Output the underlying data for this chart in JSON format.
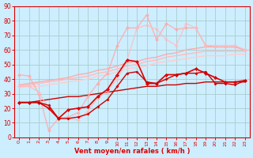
{
  "x": [
    0,
    1,
    2,
    3,
    4,
    5,
    6,
    7,
    8,
    9,
    10,
    11,
    12,
    13,
    14,
    15,
    16,
    17,
    18,
    19,
    20,
    21,
    22,
    23
  ],
  "lines": [
    {
      "y": [
        36,
        37,
        38,
        39,
        40,
        41,
        43,
        44,
        46,
        47,
        49,
        51,
        52,
        54,
        55,
        57,
        58,
        60,
        61,
        62,
        62,
        62,
        62,
        60
      ],
      "color": "#ffaaaa",
      "lw": 1.0,
      "marker": null,
      "markersize": 0,
      "alpha": 1.0
    },
    {
      "y": [
        35,
        36,
        37,
        38,
        39,
        40,
        41,
        42,
        44,
        45,
        47,
        49,
        50,
        52,
        53,
        55,
        56,
        57,
        58,
        59,
        59,
        59,
        59,
        59
      ],
      "color": "#ffbbbb",
      "lw": 1.0,
      "marker": null,
      "markersize": 0,
      "alpha": 1.0
    },
    {
      "y": [
        34,
        35,
        35,
        36,
        37,
        38,
        39,
        40,
        42,
        43,
        45,
        47,
        48,
        49,
        51,
        52,
        53,
        54,
        55,
        56,
        56,
        56,
        57,
        57
      ],
      "color": "#ffcccc",
      "lw": 1.0,
      "marker": null,
      "markersize": 0,
      "alpha": 1.0
    },
    {
      "y": [
        24,
        24,
        25,
        26,
        27,
        28,
        28,
        29,
        30,
        31,
        32,
        33,
        34,
        35,
        35,
        36,
        36,
        37,
        37,
        38,
        38,
        38,
        38,
        38
      ],
      "color": "#cc0000",
      "lw": 1.0,
      "marker": null,
      "markersize": 0,
      "alpha": 1.0
    },
    {
      "y": [
        43,
        42,
        30,
        5,
        13,
        14,
        17,
        28,
        37,
        44,
        63,
        75,
        75,
        84,
        67,
        78,
        74,
        75,
        75,
        63,
        62,
        62,
        62,
        60
      ],
      "color": "#ffaaaa",
      "lw": 1.0,
      "marker": "D",
      "markersize": 2.5,
      "alpha": 0.85
    },
    {
      "y": [
        35,
        35,
        31,
        20,
        14,
        13,
        12,
        18,
        27,
        32,
        40,
        53,
        75,
        77,
        74,
        67,
        63,
        78,
        75,
        63,
        63,
        63,
        63,
        60
      ],
      "color": "#ffbbbb",
      "lw": 1.0,
      "marker": "D",
      "markersize": 2.5,
      "alpha": 0.75
    },
    {
      "y": [
        24,
        24,
        24,
        20,
        13,
        19,
        20,
        21,
        28,
        33,
        43,
        53,
        52,
        37,
        37,
        43,
        43,
        44,
        47,
        44,
        41,
        38,
        38,
        39
      ],
      "color": "#dd0000",
      "lw": 1.2,
      "marker": "D",
      "markersize": 2.5,
      "alpha": 1.0
    },
    {
      "y": [
        24,
        24,
        24,
        22,
        13,
        13,
        14,
        16,
        21,
        26,
        35,
        44,
        45,
        38,
        37,
        40,
        43,
        44,
        44,
        45,
        37,
        37,
        36,
        39
      ],
      "color": "#cc0000",
      "lw": 1.0,
      "marker": "D",
      "markersize": 2.0,
      "alpha": 1.0
    }
  ],
  "xlabel": "Vent moyen/en rafales ( km/h )",
  "xlim": [
    -0.5,
    23.5
  ],
  "ylim": [
    0,
    90
  ],
  "yticks": [
    0,
    10,
    20,
    30,
    40,
    50,
    60,
    70,
    80,
    90
  ],
  "xticks": [
    0,
    1,
    2,
    3,
    4,
    5,
    6,
    7,
    8,
    9,
    10,
    11,
    12,
    13,
    14,
    15,
    16,
    17,
    18,
    19,
    20,
    21,
    22,
    23
  ],
  "bg_color": "#cceeff",
  "grid_color": "#aacccc",
  "tick_color": "#dd0000",
  "label_color": "#dd0000",
  "spine_color": "#dd0000"
}
